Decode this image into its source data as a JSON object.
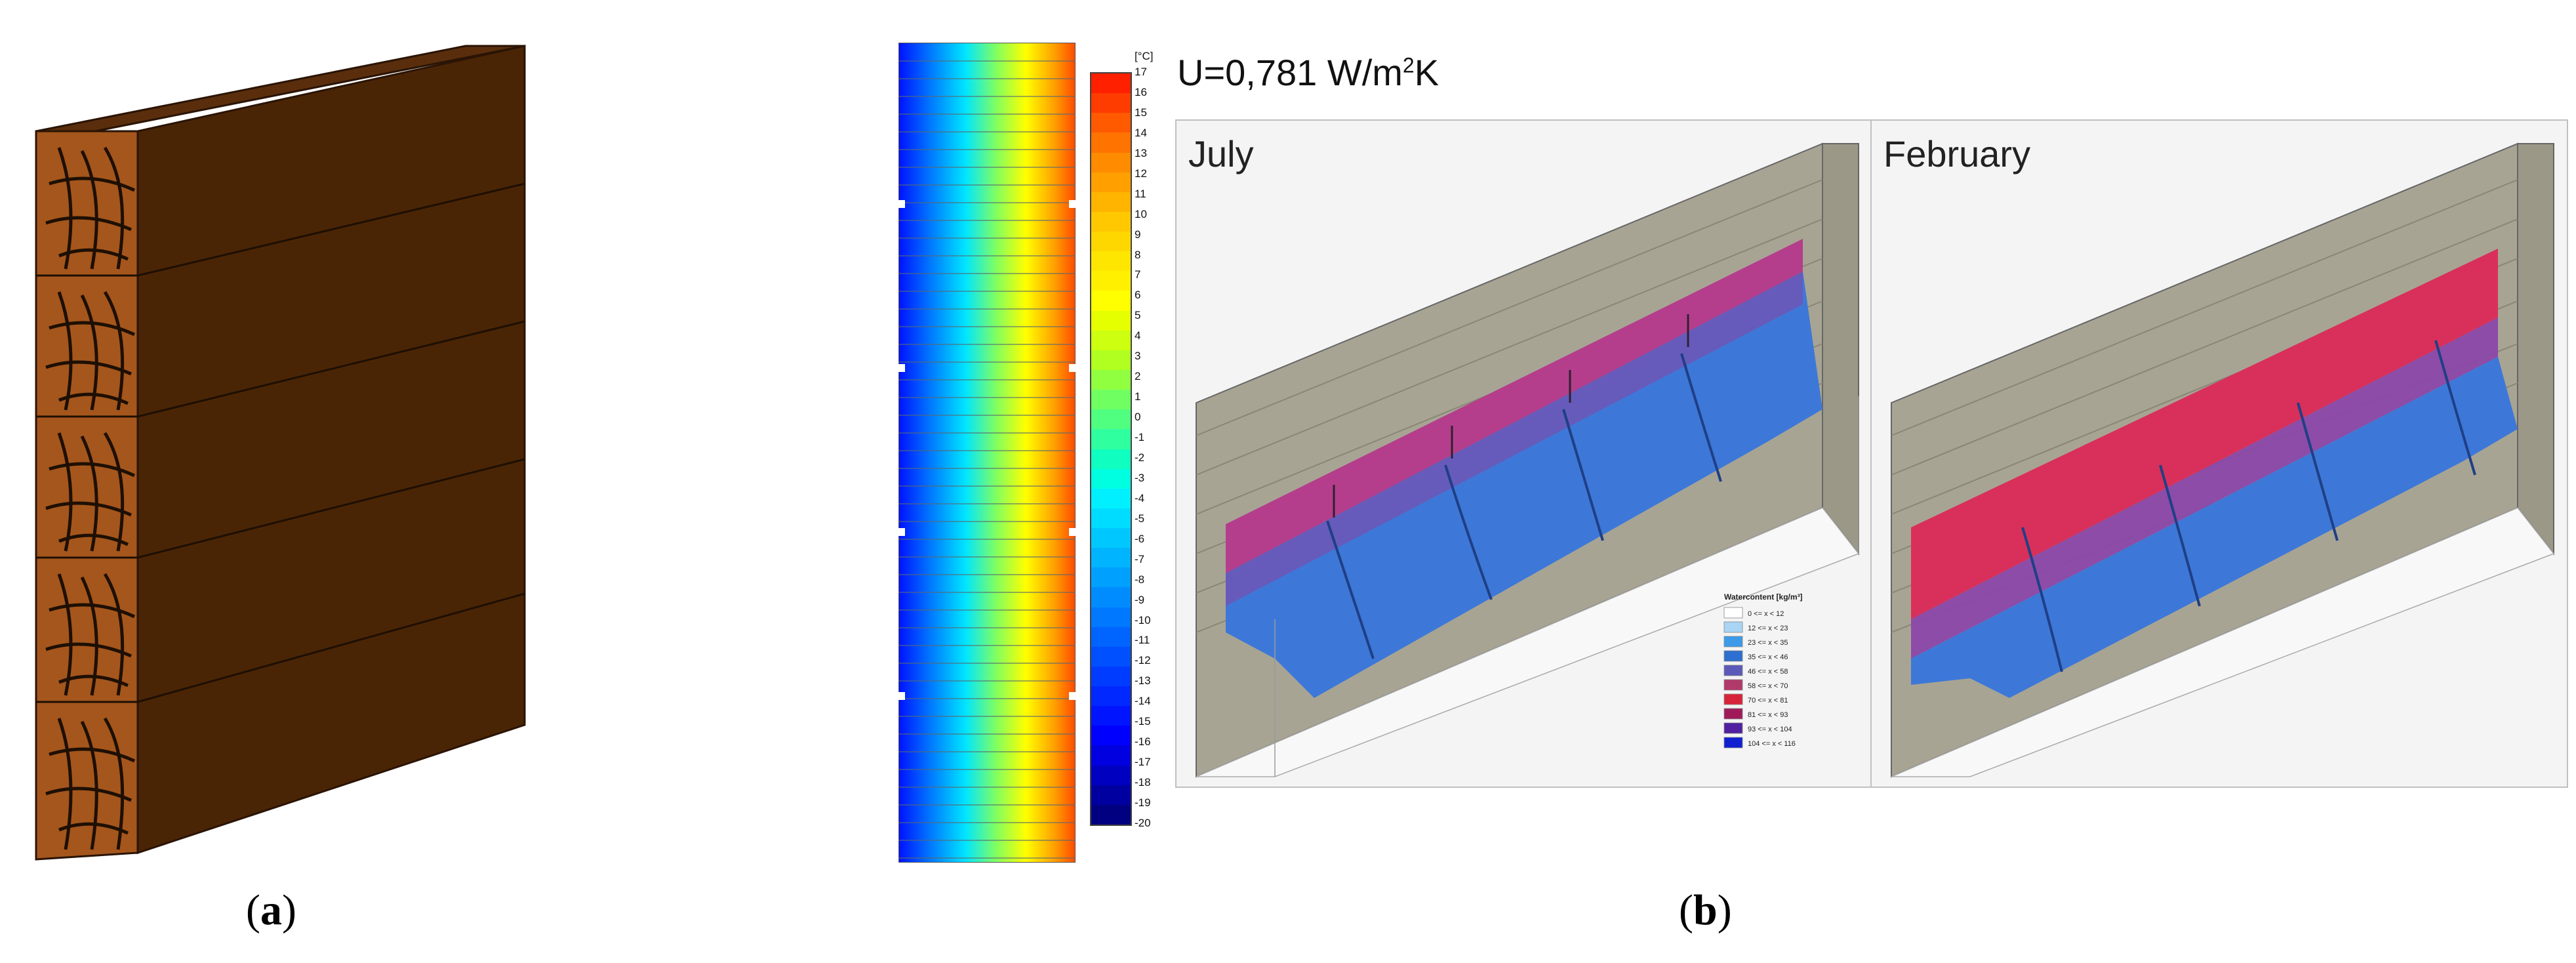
{
  "figure": {
    "panel_a": {
      "label_open": "(",
      "label_letter": "a",
      "label_close": ")"
    },
    "panel_b": {
      "label_open": "(",
      "label_letter": "b",
      "label_close": ")"
    }
  },
  "colorbar": {
    "unit": "[°C]",
    "ticks": [
      "17",
      "16",
      "15",
      "14",
      "13",
      "12",
      "11",
      "10",
      "9",
      "8",
      "7",
      "6",
      "5",
      "4",
      "3",
      "2",
      "1",
      "0",
      "-1",
      "-2",
      "-3",
      "-4",
      "-5",
      "-6",
      "-7",
      "-8",
      "-9",
      "-10",
      "-11",
      "-12",
      "-13",
      "-14",
      "-15",
      "-16",
      "-17",
      "-18",
      "-19",
      "-20"
    ],
    "colors": [
      "#ff2000",
      "#ff3c00",
      "#ff5a00",
      "#ff7300",
      "#ff8c00",
      "#ffa000",
      "#ffb400",
      "#ffc800",
      "#ffd700",
      "#ffe600",
      "#fff000",
      "#ffff00",
      "#e6ff00",
      "#ccff10",
      "#b0ff20",
      "#90ff40",
      "#70ff60",
      "#50ff80",
      "#30ffa0",
      "#10ffc0",
      "#00ffe0",
      "#00f0ff",
      "#00dcff",
      "#00c8ff",
      "#00b4ff",
      "#00a0ff",
      "#008cff",
      "#0078ff",
      "#0064ff",
      "#0050ff",
      "#003cff",
      "#0028ff",
      "#0014ff",
      "#0000ff",
      "#0000e0",
      "#0000c0",
      "#0000a0",
      "#000080"
    ]
  },
  "heat_map": {
    "u_value_prefix": "U=0,781 W/m",
    "u_value_sup": "2",
    "u_value_suffix": "K"
  },
  "july": {
    "title": "July"
  },
  "february": {
    "title": "February"
  },
  "water_legend": {
    "title": "Watercontent [kg/m³]",
    "rows": [
      {
        "label": "0 <= x < 12",
        "color": "#ffffff"
      },
      {
        "label": "12 <= x < 23",
        "color": "#a8d4f5"
      },
      {
        "label": "23 <= x < 35",
        "color": "#3d9ae8"
      },
      {
        "label": "35 <= x < 46",
        "color": "#2e6fd0"
      },
      {
        "label": "46 <= x < 58",
        "color": "#5b5ab8"
      },
      {
        "label": "58 <= x < 70",
        "color": "#b03a6a"
      },
      {
        "label": "70 <= x < 81",
        "color": "#d8243a"
      },
      {
        "label": "81 <= x < 93",
        "color": "#a01a5a"
      },
      {
        "label": "93 <= x < 104",
        "color": "#5020a0"
      },
      {
        "label": "104 <= x < 116",
        "color": "#1020d0"
      }
    ]
  }
}
